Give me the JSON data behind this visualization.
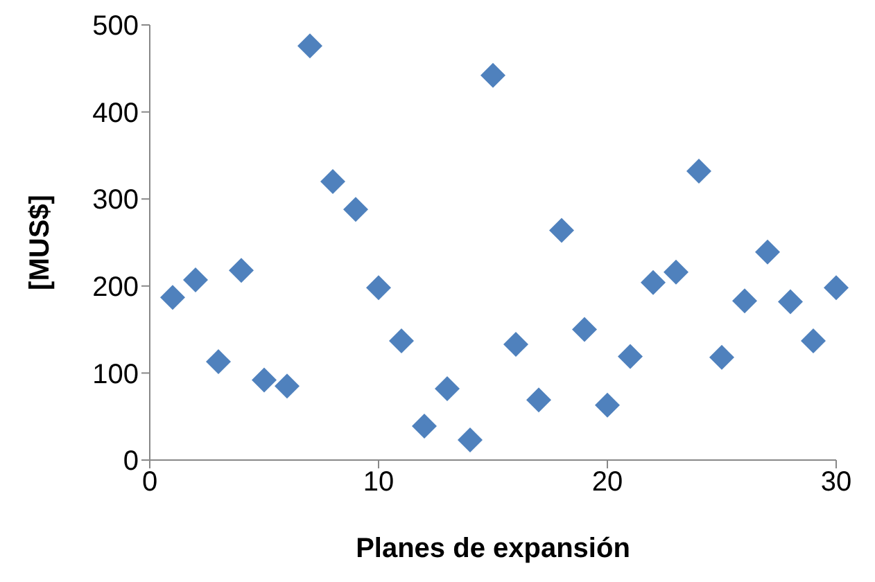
{
  "chart_data": {
    "type": "scatter",
    "xlabel": "Planes de expansión",
    "ylabel": "[MUS$]",
    "x": [
      1,
      2,
      3,
      4,
      5,
      6,
      7,
      8,
      9,
      10,
      11,
      12,
      13,
      14,
      15,
      16,
      17,
      18,
      19,
      20,
      21,
      22,
      23,
      24,
      25,
      26,
      27,
      28,
      29,
      30
    ],
    "series": [
      {
        "color": "#4f81bd",
        "values": [
          187,
          207,
          113,
          218,
          92,
          85,
          476,
          320,
          288,
          198,
          137,
          39,
          82,
          23,
          442,
          133,
          69,
          264,
          150,
          63,
          119,
          204,
          216,
          332,
          118,
          183,
          239,
          182,
          137,
          198
        ]
      }
    ],
    "xlim": [
      0,
      30
    ],
    "xticks": [
      0,
      10,
      20,
      30
    ],
    "ylim": [
      0,
      500
    ],
    "yticks": [
      0,
      100,
      200,
      300,
      400,
      500
    ],
    "marker": "diamond",
    "grid": false
  }
}
